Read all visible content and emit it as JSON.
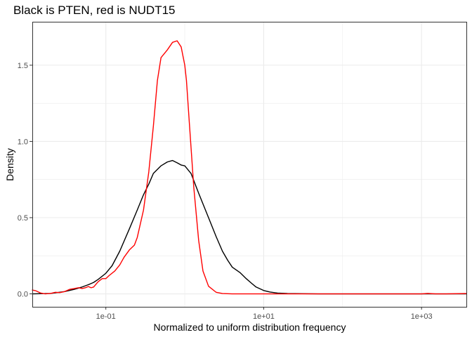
{
  "chart_data": {
    "type": "line",
    "title": "Black is PTEN, red is NUDT15",
    "xlabel": "Normalized to uniform distribution frequency",
    "ylabel": "Density",
    "x_scale": "log10",
    "xlim": [
      0.0117,
      3700
    ],
    "ylim": [
      -0.085,
      1.785
    ],
    "x_ticks": [
      {
        "value": 0.1,
        "label": "1e-01"
      },
      {
        "value": 10,
        "label": "1e+01"
      },
      {
        "value": 1000,
        "label": "1e+03"
      }
    ],
    "x_minor_ticks": [
      1,
      100
    ],
    "y_ticks": [
      {
        "value": 0,
        "label": "0.0"
      },
      {
        "value": 0.5,
        "label": "0.5"
      },
      {
        "value": 1.0,
        "label": "1.0"
      },
      {
        "value": 1.5,
        "label": "1.5"
      }
    ],
    "y_minor_ticks": [
      0.25,
      0.75,
      1.25
    ],
    "grid": true,
    "legend": "none",
    "colors": {
      "pten": "#000000",
      "nudt15": "#ff0000",
      "grid": "#ebebeb",
      "border": "#333333"
    },
    "series": [
      {
        "key": "pten",
        "color": "#000000",
        "x": [
          0.0117,
          0.02,
          0.03,
          0.04,
          0.05,
          0.06,
          0.07,
          0.08,
          0.1,
          0.12,
          0.15,
          0.2,
          0.25,
          0.3,
          0.35,
          0.4,
          0.5,
          0.6,
          0.7,
          0.8,
          0.9,
          1.0,
          1.2,
          1.5,
          2.0,
          2.5,
          3.0,
          3.5,
          4.0,
          5.0,
          6.0,
          7.0,
          8.0,
          10,
          12,
          15,
          20,
          30,
          50,
          100,
          1000,
          3700
        ],
        "y": [
          0.0,
          0.003,
          0.015,
          0.03,
          0.045,
          0.06,
          0.075,
          0.095,
          0.135,
          0.185,
          0.28,
          0.43,
          0.55,
          0.65,
          0.72,
          0.79,
          0.84,
          0.865,
          0.875,
          0.86,
          0.845,
          0.84,
          0.79,
          0.66,
          0.5,
          0.375,
          0.28,
          0.22,
          0.175,
          0.14,
          0.1,
          0.07,
          0.045,
          0.022,
          0.012,
          0.005,
          0.002,
          0.001,
          0.0,
          0.0,
          0.0,
          0.0
        ]
      },
      {
        "key": "nudt15",
        "color": "#ff0000",
        "x": [
          0.0117,
          0.013,
          0.015,
          0.017,
          0.02,
          0.023,
          0.026,
          0.03,
          0.035,
          0.04,
          0.045,
          0.05,
          0.055,
          0.06,
          0.065,
          0.07,
          0.08,
          0.09,
          0.1,
          0.11,
          0.13,
          0.15,
          0.17,
          0.2,
          0.23,
          0.25,
          0.3,
          0.35,
          0.4,
          0.45,
          0.5,
          0.6,
          0.7,
          0.8,
          0.9,
          1.0,
          1.05,
          1.15,
          1.3,
          1.5,
          1.7,
          2.0,
          2.5,
          3.0,
          4.0,
          5.0,
          10,
          100,
          500,
          1000,
          1200,
          1500,
          2000,
          3700
        ],
        "y": [
          0.025,
          0.02,
          0.005,
          0.0,
          0.003,
          0.01,
          0.008,
          0.015,
          0.03,
          0.035,
          0.04,
          0.035,
          0.04,
          0.048,
          0.04,
          0.045,
          0.08,
          0.1,
          0.1,
          0.12,
          0.15,
          0.19,
          0.24,
          0.29,
          0.32,
          0.37,
          0.55,
          0.8,
          1.1,
          1.4,
          1.55,
          1.6,
          1.65,
          1.66,
          1.62,
          1.5,
          1.4,
          1.1,
          0.7,
          0.35,
          0.15,
          0.05,
          0.01,
          0.002,
          0.0,
          0.0,
          0.0,
          0.0,
          0.0,
          0.0,
          0.003,
          0.0,
          0.0,
          0.002
        ]
      }
    ]
  }
}
